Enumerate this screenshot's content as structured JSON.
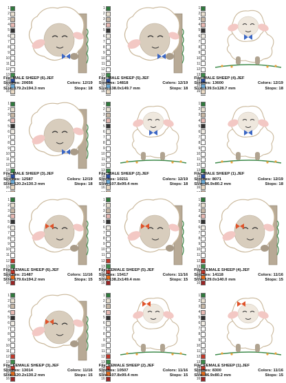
{
  "page": {
    "bg_color": "#ffffff"
  },
  "palettes": {
    "male": [
      {
        "n": "1",
        "c": "#2f7a3d"
      },
      {
        "n": "2",
        "c": "#e8dfd0"
      },
      {
        "n": "3",
        "c": "#c8b8a6"
      },
      {
        "n": "4",
        "c": "#e7b8b2"
      },
      {
        "n": "5",
        "c": "#333333"
      },
      {
        "n": "6",
        "c": "#f0ece4"
      },
      {
        "n": "7",
        "c": "#ffffff"
      },
      {
        "n": "8",
        "c": "#ffffff"
      },
      {
        "n": "9",
        "c": "#ffffff"
      },
      {
        "n": "10",
        "c": "#ffffff"
      },
      {
        "n": "11",
        "c": "#ffffff"
      },
      {
        "n": "12",
        "c": "#ffffff"
      },
      {
        "n": "13",
        "c": "#3d8a4a"
      },
      {
        "n": "14",
        "c": "#2a4fa0"
      },
      {
        "n": "15",
        "c": "#6aa9d6"
      },
      {
        "n": "16",
        "c": "#e9d9c4"
      },
      {
        "n": "17",
        "c": "#c9a38a"
      },
      {
        "n": "18",
        "c": "#9b2525"
      },
      {
        "n": "19",
        "c": "#f4d7d0"
      }
    ],
    "female": [
      {
        "n": "1",
        "c": "#2f7a3d"
      },
      {
        "n": "2",
        "c": "#e8dfd0"
      },
      {
        "n": "3",
        "c": "#c8b8a6"
      },
      {
        "n": "4",
        "c": "#e7b8b2"
      },
      {
        "n": "5",
        "c": "#333333"
      },
      {
        "n": "6",
        "c": "#f0ece4"
      },
      {
        "n": "7",
        "c": "#ffffff"
      },
      {
        "n": "8",
        "c": "#ffffff"
      },
      {
        "n": "9",
        "c": "#ffffff"
      },
      {
        "n": "10",
        "c": "#ffffff"
      },
      {
        "n": "11",
        "c": "#ffffff"
      },
      {
        "n": "12",
        "c": "#c0392b"
      },
      {
        "n": "13",
        "c": "#3d8a4a"
      },
      {
        "n": "14",
        "c": "#c0392b"
      },
      {
        "n": "15",
        "c": "#e46a1a"
      },
      {
        "n": "16",
        "c": "#9b2525"
      }
    ]
  },
  "designs": [
    {
      "file": "File: MALE SHEEP (6).JEF",
      "stitches": "Stitches: 20656",
      "size": "Size: 179.2x194.3 mm",
      "colors": "Colors: 12/19",
      "stops": "Stops: 18",
      "gender": "male",
      "pose": "peek"
    },
    {
      "file": "File: MALE SHEEP (5).JEF",
      "stitches": "Stitches: 14818",
      "size": "Size: 138.0x149.7 mm",
      "colors": "Colors: 12/19",
      "stops": "Stops: 18",
      "gender": "male",
      "pose": "peek"
    },
    {
      "file": "File: MALE SHEEP (4).JEF",
      "stitches": "Stitches: 13600",
      "size": "Size: 139.5x128.7 mm",
      "colors": "Colors: 12/19",
      "stops": "Stops: 18",
      "gender": "male",
      "pose": "full"
    },
    {
      "file": "File: MALE SHEEP (3).JEF",
      "stitches": "Stitches: 12587",
      "size": "Size: 120.2x130.3 mm",
      "colors": "Colors: 12/19",
      "stops": "Stops: 18",
      "gender": "male",
      "pose": "peek"
    },
    {
      "file": "File: MALE SHEEP (2).JEF",
      "stitches": "Stitches: 10211",
      "size": "Size: 107.8x99.4 mm",
      "colors": "Colors: 12/19",
      "stops": "Stops: 18",
      "gender": "male",
      "pose": "full"
    },
    {
      "file": "File: MALE SHEEP (1).JEF",
      "stitches": "Stitches: 8071",
      "size": "Size: 86.9x80.2 mm",
      "colors": "Colors: 12/19",
      "stops": "Stops: 18",
      "gender": "male",
      "pose": "full"
    },
    {
      "file": "File: FEMALE SHEEP (6).JEF",
      "stitches": "Stitches: 21487",
      "size": "Size: 179.6x194.2 mm",
      "colors": "Colors: 11/16",
      "stops": "Stops: 15",
      "gender": "female",
      "pose": "peek"
    },
    {
      "file": "File: FEMALE SHEEP (5).JEF",
      "stitches": "Stitches: 15417",
      "size": "Size: 138.2x149.4 mm",
      "colors": "Colors: 11/16",
      "stops": "Stops: 15",
      "gender": "female",
      "pose": "peek"
    },
    {
      "file": "File: FEMALE SHEEP (4).JEF",
      "stitches": "Stitches: 14118",
      "size": "Size: 129.0x140.0 mm",
      "colors": "Colors: 11/16",
      "stops": "Stops: 15",
      "gender": "female",
      "pose": "peek"
    },
    {
      "file": "File: FEMALE SHEEP (3).JEF",
      "stitches": "Stitches: 13014",
      "size": "Size: 120.2x130.2 mm",
      "colors": "Colors: 11/16",
      "stops": "Stops: 15",
      "gender": "female",
      "pose": "peek"
    },
    {
      "file": "File: FEMALE SHEEP (2).JEF",
      "stitches": "Stitches: 10507",
      "size": "Size: 107.8x99.4 mm",
      "colors": "Colors: 11/16",
      "stops": "Stops: 15",
      "gender": "female",
      "pose": "full"
    },
    {
      "file": "File: FEMALE SHEEP (1).JEF",
      "stitches": "Stitches: 8300",
      "size": "Size: 86.9x80.2 mm",
      "colors": "Colors: 11/16",
      "stops": "Stops: 15",
      "gender": "female",
      "pose": "full"
    }
  ]
}
